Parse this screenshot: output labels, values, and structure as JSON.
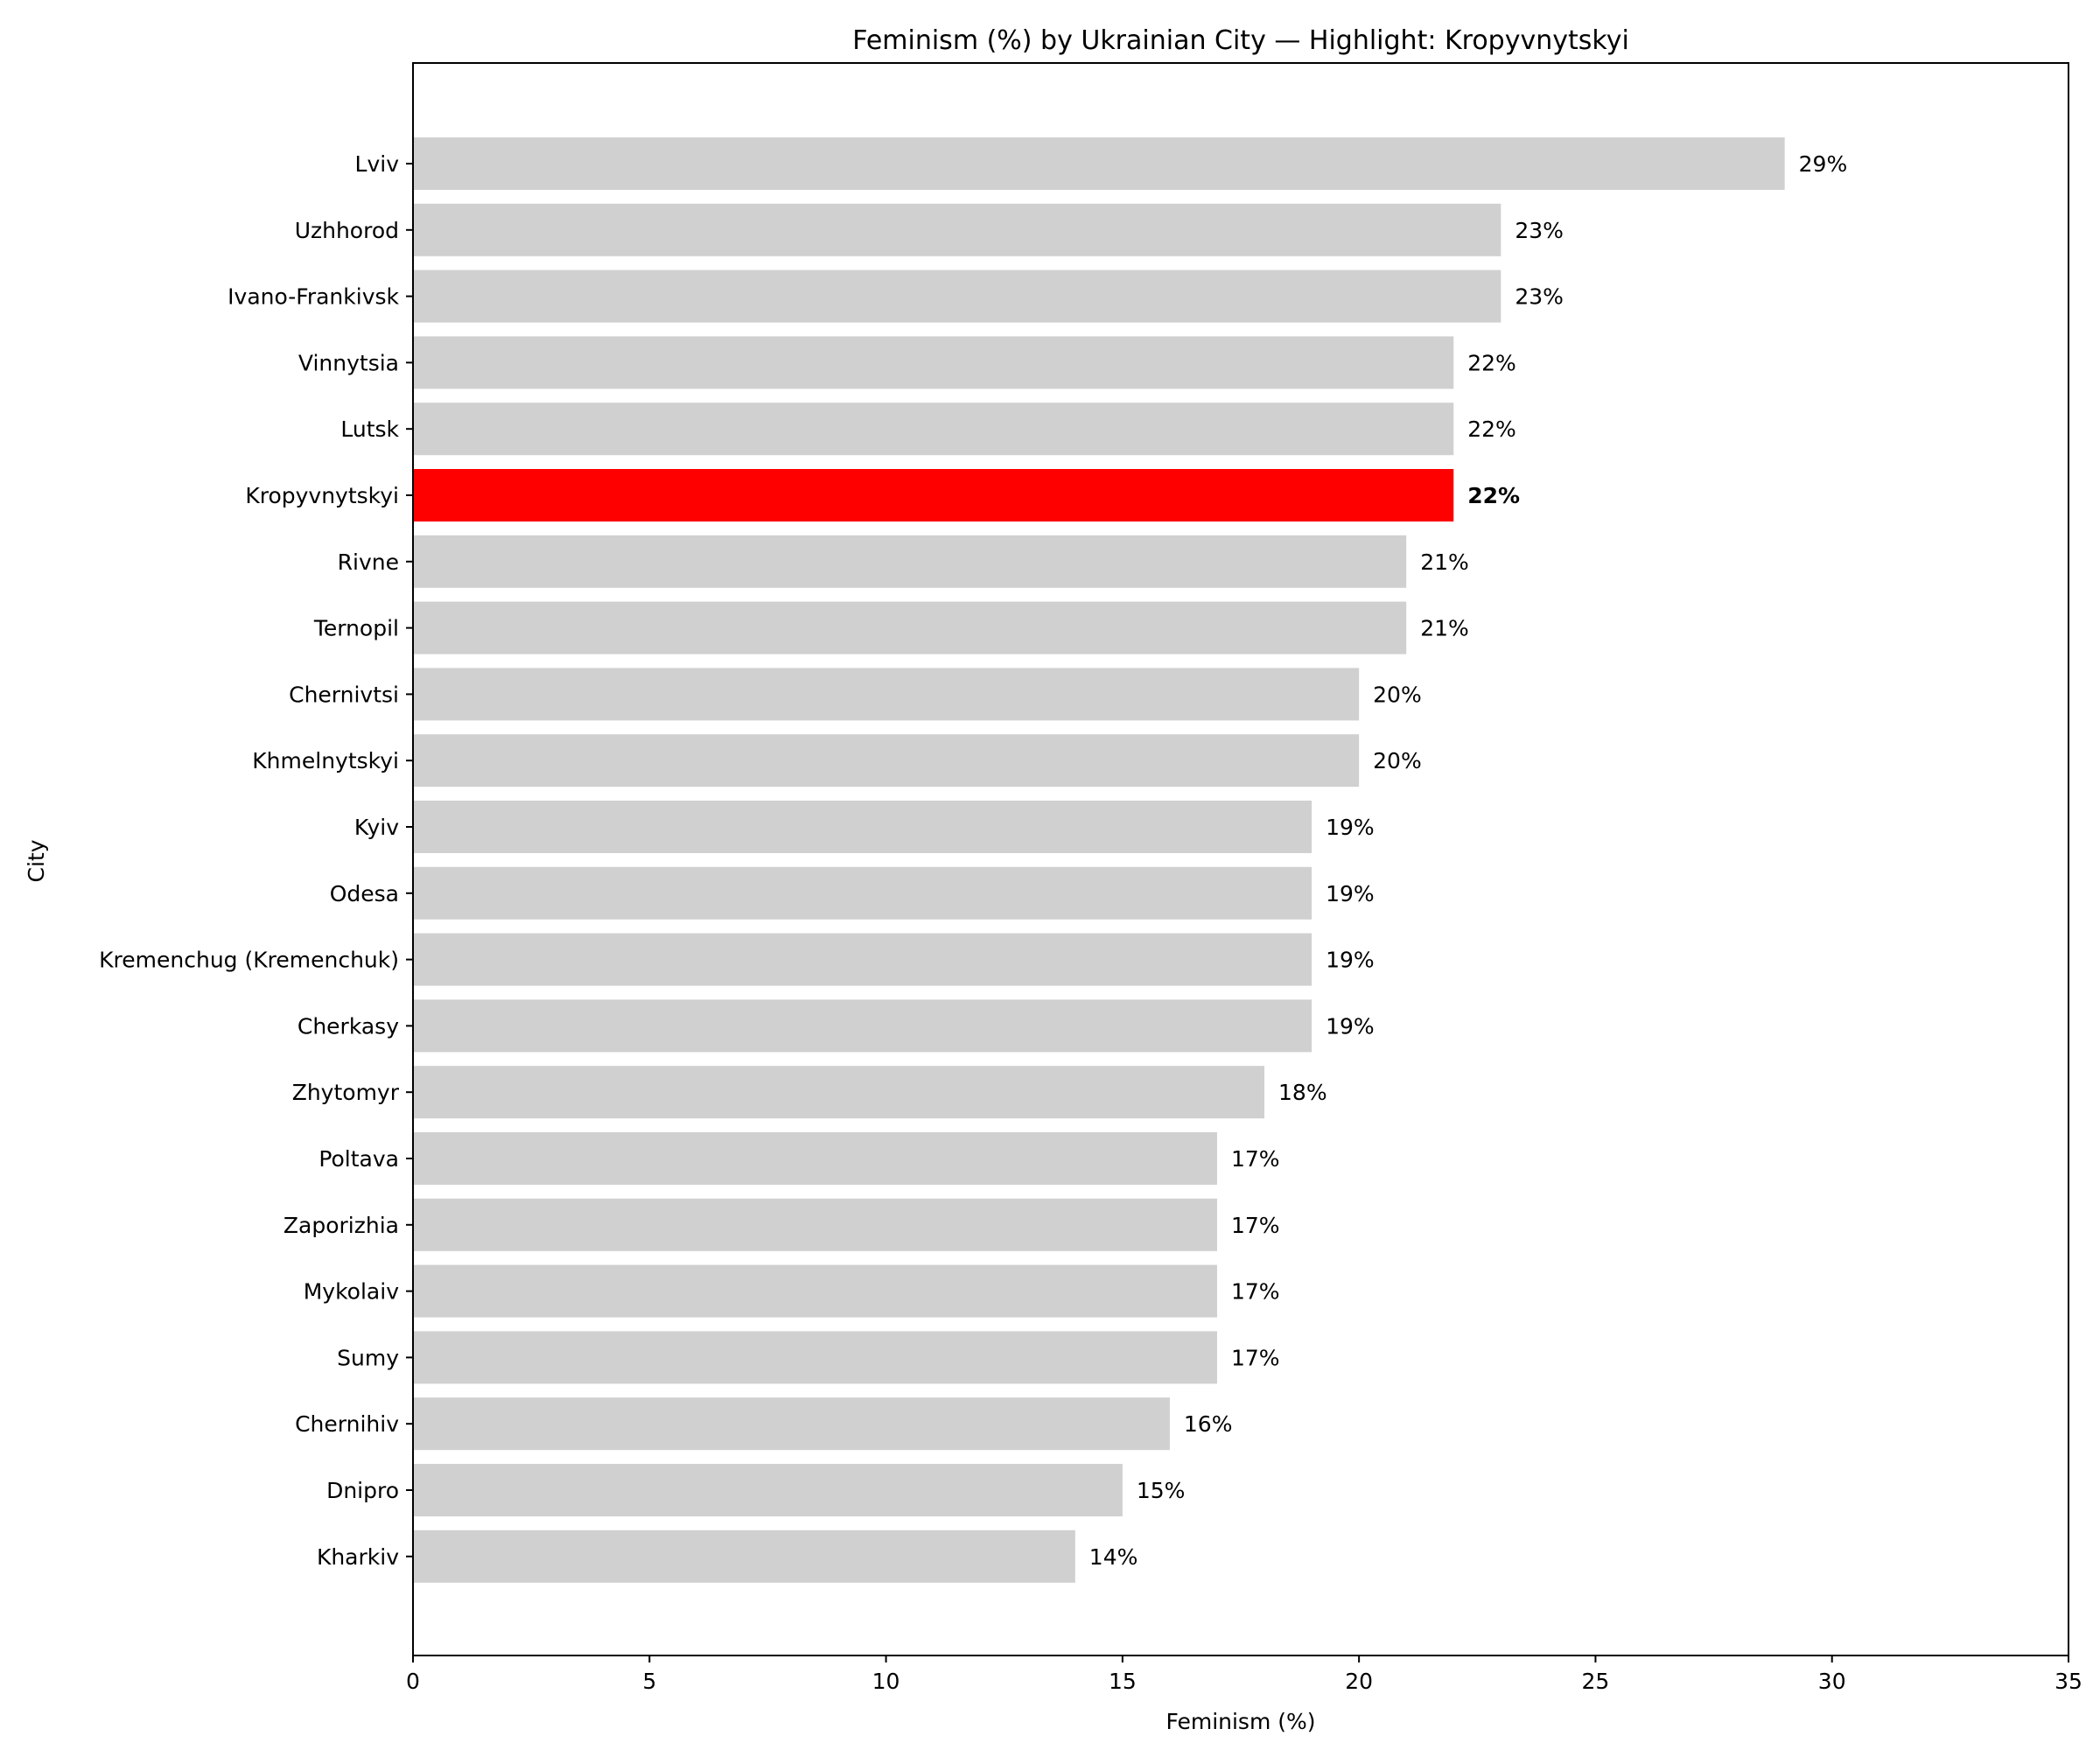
{
  "chart_data": {
    "type": "bar",
    "orientation": "horizontal",
    "title": "Feminism (%) by Ukrainian City — Highlight: Kropyvnytskyi",
    "xlabel": "Feminism (%)",
    "ylabel": "City",
    "xlim": [
      0,
      35
    ],
    "xticks": [
      0,
      5,
      10,
      15,
      20,
      25,
      30,
      35
    ],
    "grid": false,
    "highlight": "Kropyvnytskyi",
    "colors": {
      "bar": "#d0d0d0",
      "highlight": "#ff0000"
    },
    "value_suffix": "%",
    "categories": [
      "Lviv",
      "Uzhhorod",
      "Ivano-Frankivsk",
      "Vinnytsia",
      "Lutsk",
      "Kropyvnytskyi",
      "Rivne",
      "Ternopil",
      "Chernivtsi",
      "Khmelnytskyi",
      "Kyiv",
      "Odesa",
      "Kremenchug (Kremenchuk)",
      "Cherkasy",
      "Zhytomyr",
      "Poltava",
      "Zaporizhia",
      "Mykolaiv",
      "Sumy",
      "Chernihiv",
      "Dnipro",
      "Kharkiv"
    ],
    "values": [
      29,
      23,
      23,
      22,
      22,
      22,
      21,
      21,
      20,
      20,
      19,
      19,
      19,
      19,
      18,
      17,
      17,
      17,
      17,
      16,
      15,
      14
    ]
  }
}
